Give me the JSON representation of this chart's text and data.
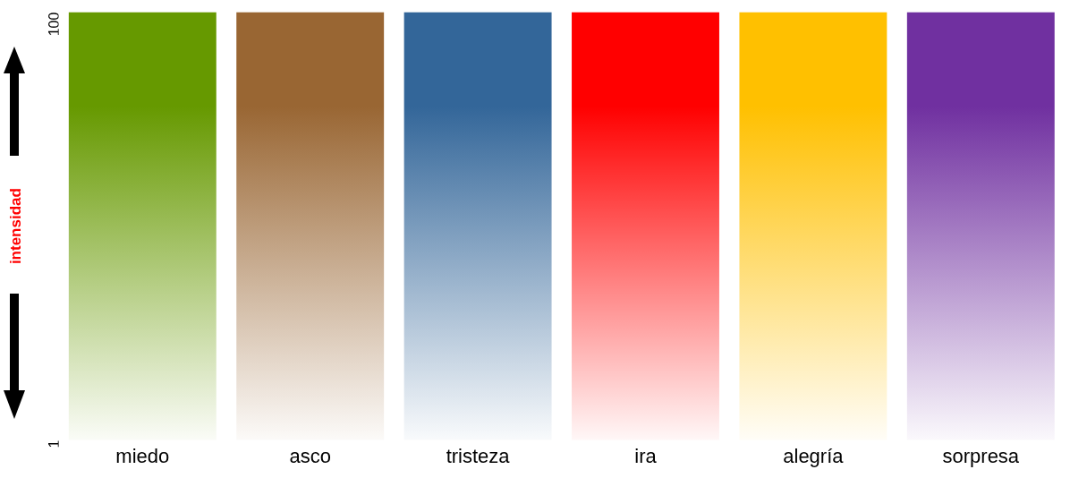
{
  "chart_data": {
    "type": "bar",
    "ylabel": "intensidad",
    "categories": [
      "miedo",
      "asco",
      "tristeza",
      "ira",
      "alegría",
      "sorpresa"
    ],
    "values": [
      100,
      100,
      100,
      100,
      100,
      100
    ],
    "colors": [
      "#669900",
      "#996633",
      "#336699",
      "#ff0000",
      "#ffc000",
      "#7030a0"
    ],
    "ylim": [
      1,
      100
    ],
    "yticks": [
      1,
      100
    ],
    "grid": false,
    "legend": false
  }
}
